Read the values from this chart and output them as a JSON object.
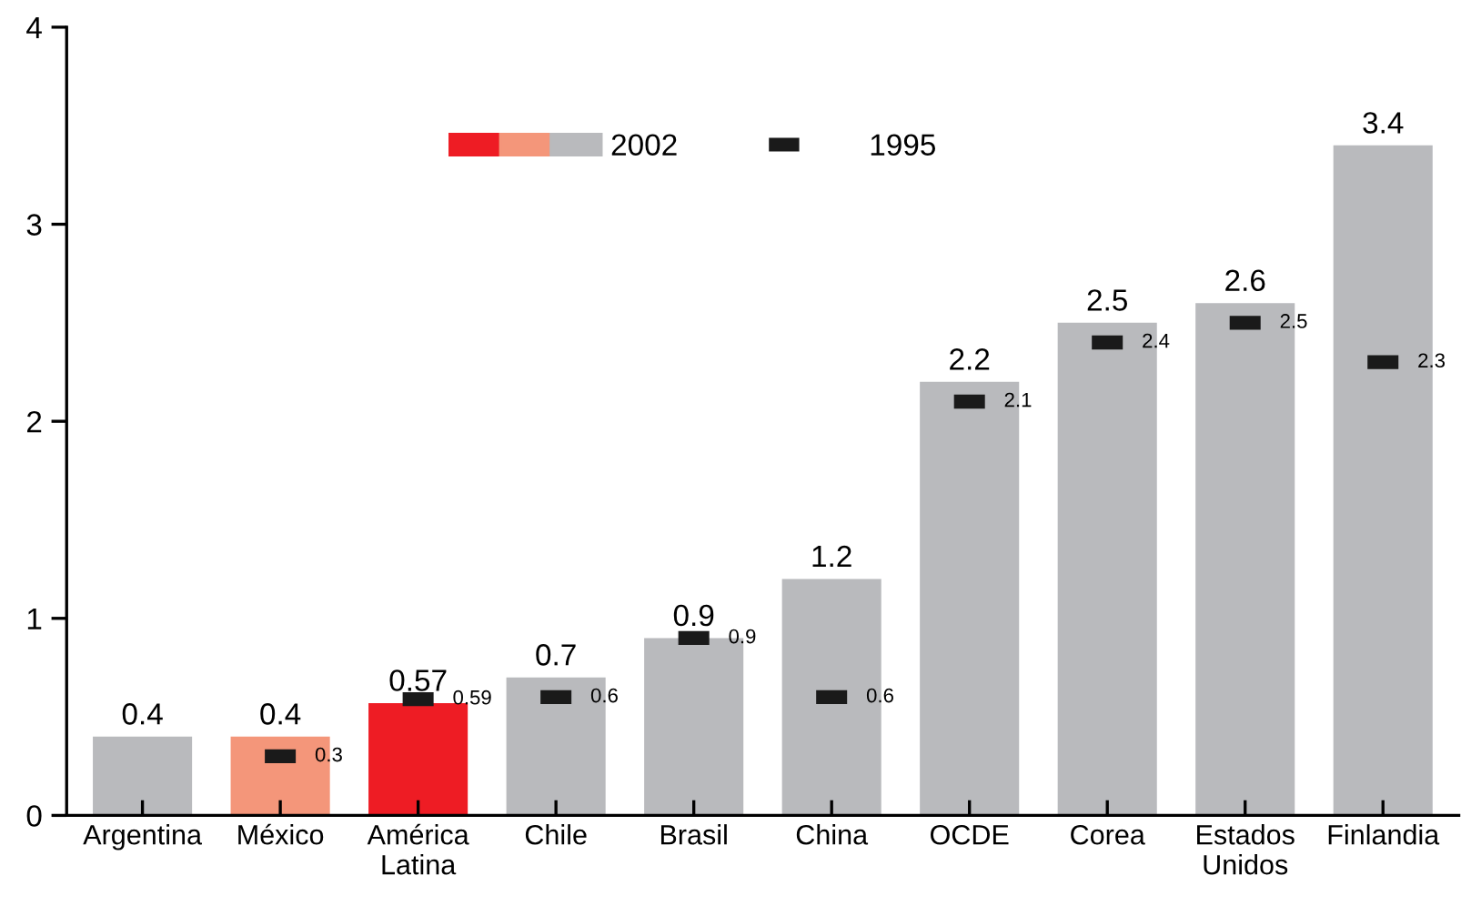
{
  "chart_data": {
    "type": "bar",
    "categories": [
      "Argentina",
      "México",
      "América\nLatina",
      "Chile",
      "Brasil",
      "China",
      "OCDE",
      "Corea",
      "Estados\nUnidos",
      "Finlandia"
    ],
    "series": [
      {
        "name": "2002",
        "type": "bar",
        "colors": [
          "#b9babd",
          "#f4967a",
          "#ee1c24",
          "#b9babd",
          "#b9babd",
          "#b9babd",
          "#b9babd",
          "#b9babd",
          "#b9babd",
          "#b9babd"
        ],
        "values": [
          0.4,
          0.4,
          0.57,
          0.7,
          0.9,
          1.2,
          2.2,
          2.5,
          2.6,
          3.4
        ]
      },
      {
        "name": "1995",
        "type": "scatter",
        "color": "#1a1a1a",
        "x": [
          "Argentina",
          "México",
          "América\nLatina",
          "Chile",
          "Brasil",
          "China",
          "OCDE",
          "Corea",
          "Estados\nUnidos",
          "Finlandia"
        ],
        "values": [
          null,
          0.3,
          0.59,
          0.6,
          0.9,
          0.6,
          2.1,
          2.4,
          2.5,
          2.3
        ]
      }
    ],
    "ylim": [
      0,
      4
    ],
    "yticks": [
      0,
      1,
      2,
      3,
      4
    ],
    "grid": false,
    "legend": "top",
    "data_labels": true
  }
}
